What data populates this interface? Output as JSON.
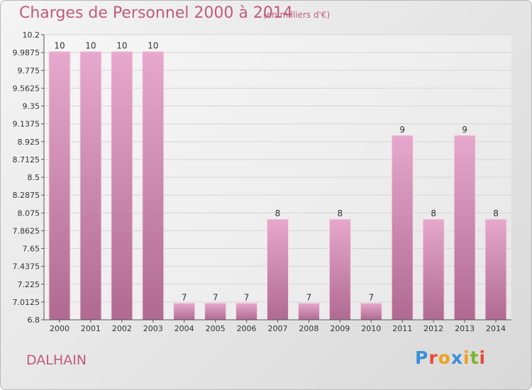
{
  "header": {
    "title": "Charges de Personnel 2000 à 2014",
    "subtitle": "(en milliers d'€)"
  },
  "footer": {
    "commune": "DALHAIN",
    "logo_letters": [
      "P",
      "r",
      "o",
      "x",
      "i",
      "t",
      "i"
    ],
    "logo_colors": [
      "#3a8fd8",
      "#e84a3a",
      "#f0a020",
      "#3a8fd8",
      "#f0a020",
      "#79b62e",
      "#e84a3a"
    ]
  },
  "colors": {
    "bar_light": "#e6a8cc",
    "bar_dark": "#b06a92",
    "text": "#333333",
    "accent": "#c05a7e"
  },
  "chart_data": {
    "type": "bar",
    "categories": [
      "2000",
      "2001",
      "2002",
      "2003",
      "2004",
      "2005",
      "2006",
      "2007",
      "2008",
      "2009",
      "2010",
      "2011",
      "2012",
      "2013",
      "2014"
    ],
    "values": [
      10,
      10,
      10,
      10,
      7,
      7,
      7,
      8,
      7,
      8,
      7,
      9,
      8,
      9,
      8
    ],
    "data_labels": [
      "10",
      "10",
      "10",
      "10",
      "7",
      "7",
      "7",
      "8",
      "7",
      "8",
      "7",
      "9",
      "8",
      "9",
      "8"
    ],
    "title": "Charges de Personnel 2000 à 2014",
    "xlabel": "",
    "ylabel": "",
    "ylim": [
      6.8,
      10.2
    ],
    "yticks": [
      6.8,
      7.0125,
      7.225,
      7.4375,
      7.65,
      7.8625,
      8.075,
      8.2875,
      8.5,
      8.7125,
      8.925,
      9.1375,
      9.35,
      9.5625,
      9.775,
      9.9875,
      10.2
    ],
    "ytick_labels": [
      "6.8",
      "7.0125",
      "7.225",
      "7.4375",
      "7.65",
      "7.8625",
      "8.075",
      "8.2875",
      "8.5",
      "8.7125",
      "8.925",
      "9.1375",
      "9.35",
      "9.5625",
      "9.775",
      "9.9875",
      "10.2"
    ],
    "grid": true,
    "legend": "none"
  }
}
